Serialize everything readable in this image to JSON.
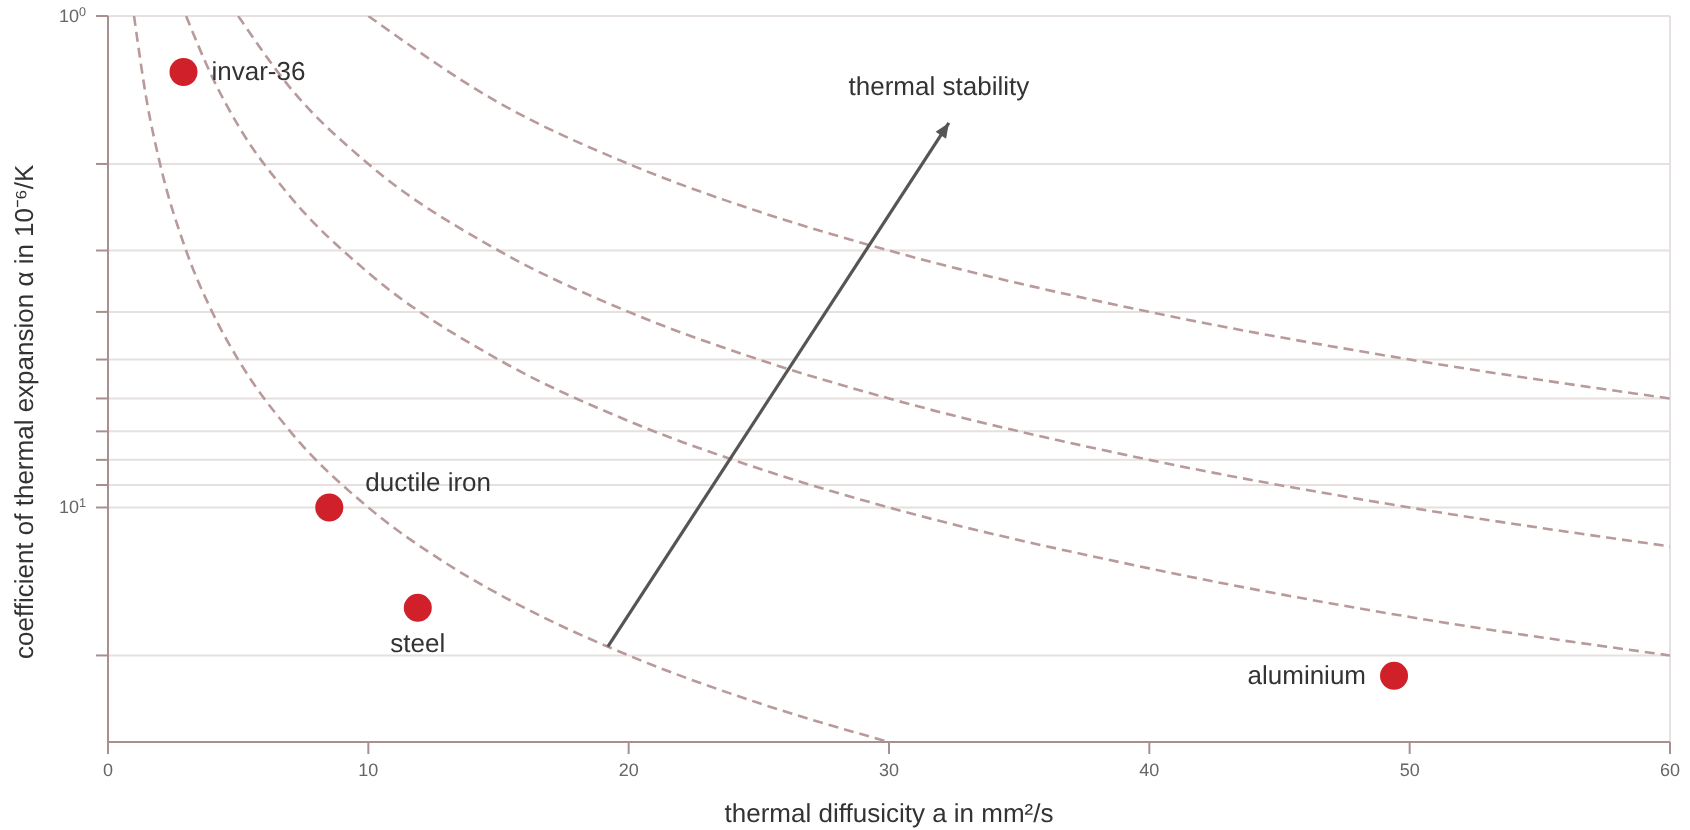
{
  "chart_data": {
    "type": "scatter",
    "xlabel": "thermal diffusicity a in mm²/s",
    "ylabel": "coefficient of thermal expansion α in 10⁻⁶/K",
    "annotations": [
      {
        "text": "thermal stability",
        "x": 19.2,
        "y": 19.2
      }
    ],
    "xlim": [
      0,
      60
    ],
    "xticks": [
      0,
      10,
      20,
      30,
      40,
      50,
      60
    ],
    "ylim": [
      30,
      1
    ],
    "log": "y",
    "yticks": [
      {
        "value": 1,
        "label": "10$^{0}$"
      },
      {
        "value": 2,
        "label": null
      },
      {
        "value": 3,
        "label": null
      },
      {
        "value": 4,
        "label": null
      },
      {
        "value": 5,
        "label": null
      },
      {
        "value": 6,
        "label": null
      },
      {
        "value": 7,
        "label": null
      },
      {
        "value": 8,
        "label": null
      },
      {
        "value": 9,
        "label": null
      },
      {
        "value": 10,
        "label": "10$^{1}$"
      },
      {
        "value": 20,
        "label": null
      }
    ],
    "grid": true,
    "legend": false,
    "series": [
      {
        "type": "scatter",
        "color": "#d0202a",
        "marker": "circle",
        "x": [
          2.9,
          8.5,
          11.9,
          49.4
        ],
        "values": [
          1.3,
          10,
          16,
          22
        ],
        "value_labels": [
          "invar-36",
          "ductile iron",
          "steel",
          "aluminium"
        ]
      },
      {
        "type": "line",
        "color": "#b89a9a",
        "line_style": "dashed",
        "marker": "none",
        "x": [
          1,
          1.5,
          2,
          3,
          4,
          5,
          7,
          10,
          13,
          16,
          20,
          25,
          30
        ],
        "values": [
          1,
          1.5,
          2,
          3,
          4,
          5,
          7,
          10,
          13,
          16,
          20,
          25,
          30
        ]
      },
      {
        "type": "line",
        "color": "#b89a9a",
        "line_style": "dashed",
        "marker": "none",
        "x": [
          3,
          4,
          5,
          7,
          10,
          15,
          20,
          25,
          30,
          40,
          50,
          60
        ],
        "values": [
          1,
          1.33,
          1.67,
          2.33,
          3.33,
          5,
          6.67,
          8.33,
          10,
          13.3,
          16.7,
          20
        ]
      },
      {
        "type": "line",
        "color": "#b89a9a",
        "line_style": "dashed",
        "marker": "none",
        "x": [
          5,
          7,
          10,
          15,
          20,
          25,
          30,
          40,
          50,
          60
        ],
        "values": [
          1,
          1.4,
          2,
          3,
          4,
          5,
          6,
          8,
          10,
          12
        ]
      },
      {
        "type": "line",
        "color": "#b89a9a",
        "line_style": "dashed",
        "marker": "none",
        "x": [
          10,
          15,
          20,
          25,
          30,
          40,
          50,
          60
        ],
        "values": [
          1,
          1.5,
          2,
          2.5,
          3,
          4,
          5,
          6
        ]
      }
    ]
  }
}
